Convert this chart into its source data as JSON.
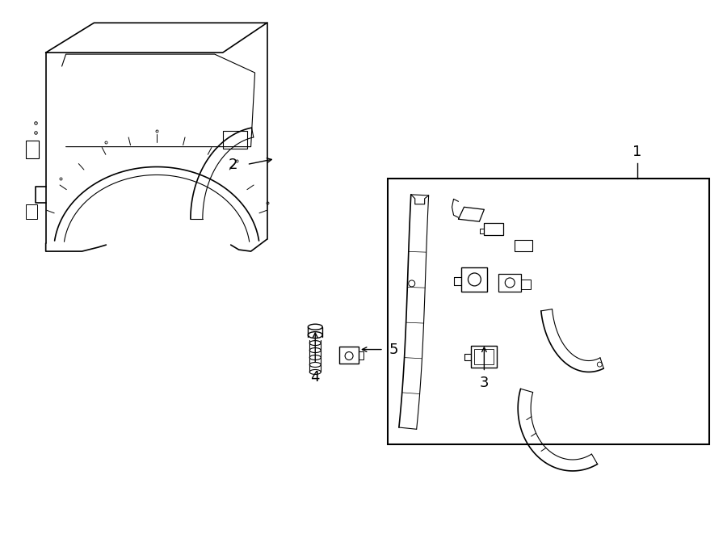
{
  "bg_color": "#ffffff",
  "line_color": "#000000",
  "fig_width": 9.0,
  "fig_height": 6.61,
  "label_fontsize": 13
}
